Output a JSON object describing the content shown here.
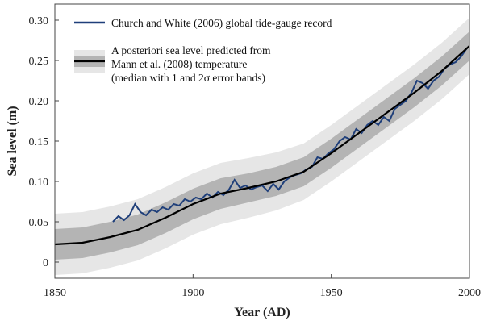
{
  "chart_data": {
    "type": "line",
    "xlabel": "Year (AD)",
    "ylabel": "Sea level  (m)",
    "xlim": [
      1850,
      2000
    ],
    "xticks": [
      1850,
      1900,
      1950,
      2000
    ],
    "ylim": [
      -0.02,
      0.32
    ],
    "yticks": [
      0,
      0.05,
      {
        "value": 0.1,
        "label": "0.10"
      },
      0.15,
      {
        "value": 0.2,
        "label": "0.20"
      },
      0.25,
      {
        "value": 0.3,
        "label": "0.30"
      }
    ],
    "band_x": [
      1850,
      1860,
      1870,
      1880,
      1890,
      1900,
      1910,
      1920,
      1930,
      1940,
      1950,
      1960,
      1970,
      1980,
      1990,
      2000
    ],
    "bands": [
      {
        "color": "#e6e6e6",
        "lower": [
          -0.016,
          -0.014,
          -0.007,
          0.002,
          0.017,
          0.034,
          0.047,
          0.055,
          0.064,
          0.077,
          0.1,
          0.125,
          0.15,
          0.175,
          0.202,
          0.233
        ],
        "upper": [
          0.06,
          0.062,
          0.069,
          0.078,
          0.093,
          0.11,
          0.123,
          0.129,
          0.136,
          0.147,
          0.17,
          0.195,
          0.22,
          0.245,
          0.272,
          0.303
        ]
      },
      {
        "color": "#b4b4b4",
        "lower": [
          0.003,
          0.005,
          0.012,
          0.021,
          0.036,
          0.053,
          0.066,
          0.074,
          0.082,
          0.094,
          0.117,
          0.142,
          0.167,
          0.192,
          0.219,
          0.25
        ],
        "upper": [
          0.041,
          0.043,
          0.05,
          0.059,
          0.074,
          0.091,
          0.104,
          0.11,
          0.118,
          0.13,
          0.153,
          0.178,
          0.203,
          0.228,
          0.255,
          0.286
        ]
      }
    ],
    "series": [
      {
        "name": "Church and White (2006) global tide-gauge record",
        "color": "#1f3f7a",
        "x": [
          1871,
          1873,
          1875,
          1877,
          1879,
          1881,
          1883,
          1885,
          1887,
          1889,
          1891,
          1893,
          1895,
          1897,
          1899,
          1901,
          1903,
          1905,
          1907,
          1909,
          1911,
          1913,
          1915,
          1917,
          1919,
          1921,
          1923,
          1925,
          1927,
          1929,
          1931,
          1933,
          1935,
          1937,
          1939,
          1941,
          1943,
          1945,
          1947,
          1949,
          1951,
          1953,
          1955,
          1957,
          1959,
          1961,
          1963,
          1965,
          1967,
          1969,
          1971,
          1973,
          1975,
          1977,
          1979,
          1981,
          1983,
          1985,
          1987,
          1989,
          1991,
          1993,
          1995,
          1997,
          1999
        ],
        "values": [
          0.05,
          0.057,
          0.052,
          0.058,
          0.072,
          0.062,
          0.058,
          0.065,
          0.062,
          0.068,
          0.065,
          0.072,
          0.07,
          0.078,
          0.075,
          0.08,
          0.078,
          0.085,
          0.08,
          0.087,
          0.083,
          0.09,
          0.102,
          0.092,
          0.095,
          0.09,
          0.093,
          0.095,
          0.088,
          0.097,
          0.09,
          0.1,
          0.105,
          0.108,
          0.11,
          0.115,
          0.118,
          0.13,
          0.128,
          0.135,
          0.14,
          0.15,
          0.155,
          0.152,
          0.165,
          0.16,
          0.17,
          0.175,
          0.17,
          0.18,
          0.175,
          0.19,
          0.195,
          0.2,
          0.21,
          0.225,
          0.222,
          0.215,
          0.225,
          0.23,
          0.24,
          0.245,
          0.248,
          0.255,
          0.265
        ]
      },
      {
        "name": "A posteriori sea level predicted from\nMann et al. (2008) temperature\n(median with 1 and 2σ error bands)",
        "color": "#000000",
        "x": [
          1850,
          1860,
          1870,
          1880,
          1890,
          1900,
          1910,
          1920,
          1930,
          1940,
          1950,
          1960,
          1970,
          1980,
          1990,
          2000
        ],
        "values": [
          0.022,
          0.024,
          0.031,
          0.04,
          0.055,
          0.072,
          0.085,
          0.092,
          0.1,
          0.112,
          0.135,
          0.16,
          0.185,
          0.21,
          0.237,
          0.268
        ]
      }
    ]
  }
}
